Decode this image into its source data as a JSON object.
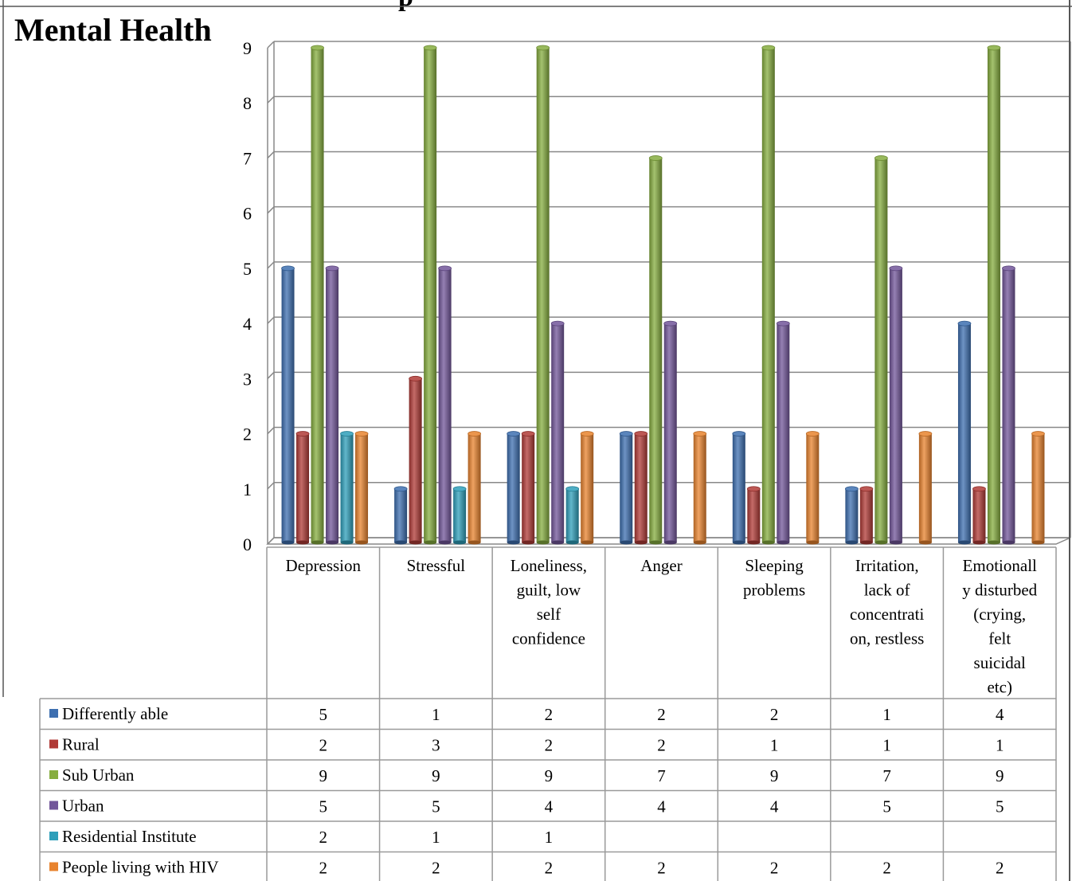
{
  "page": {
    "top_title_fragment": "p"
  },
  "chart_data": {
    "type": "bar",
    "title": "Mental Health",
    "categories": [
      "Depression",
      "Stressful",
      "Loneliness, guilt, low self confidence",
      "Anger",
      "Sleeping problems",
      "Irritation, lack of concentration, restless",
      "Emotionally disturbed (crying, felt suicidal etc)"
    ],
    "category_label_lines": [
      [
        "Depression"
      ],
      [
        "Stressful"
      ],
      [
        "Loneliness,",
        "guilt, low",
        "self",
        "confidence"
      ],
      [
        "Anger"
      ],
      [
        "Sleeping",
        "problems"
      ],
      [
        "Irritation,",
        "lack of",
        "concentrati",
        "on, restless"
      ],
      [
        "Emotionall",
        "y disturbed",
        "(crying,",
        "felt",
        "suicidal",
        "etc)"
      ]
    ],
    "series": [
      {
        "name": "Differently able",
        "color": "#3d6fb0",
        "values": [
          5,
          1,
          2,
          2,
          2,
          1,
          4
        ]
      },
      {
        "name": "Rural",
        "color": "#b03a36",
        "values": [
          2,
          3,
          2,
          2,
          1,
          1,
          1
        ]
      },
      {
        "name": "Sub Urban",
        "color": "#86ad3f",
        "values": [
          9,
          9,
          9,
          7,
          9,
          7,
          9
        ]
      },
      {
        "name": "Urban",
        "color": "#72569a",
        "values": [
          5,
          5,
          4,
          4,
          4,
          5,
          5
        ]
      },
      {
        "name": "Residential Institute",
        "color": "#2e9fba",
        "values": [
          2,
          1,
          1,
          null,
          null,
          null,
          null
        ]
      },
      {
        "name": "People living with HIV",
        "color": "#e8832e",
        "values": [
          2,
          2,
          2,
          2,
          2,
          2,
          2
        ]
      }
    ],
    "ylim": [
      0,
      9
    ],
    "yticks": [
      "0",
      "1",
      "2",
      "3",
      "4",
      "5",
      "6",
      "7",
      "8",
      "9"
    ],
    "grid": true,
    "legend": "data-table"
  }
}
